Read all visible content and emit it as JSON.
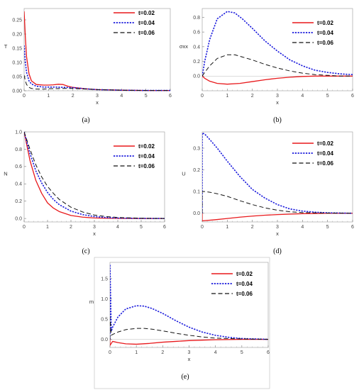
{
  "chart_data": [
    {
      "panel": "a",
      "caption": "(a)",
      "type": "line",
      "xlabel": "x",
      "ylabel": "T",
      "xlim": [
        0,
        6
      ],
      "ylim": [
        0,
        0.29
      ],
      "xticks": [
        "0",
        "1",
        "2",
        "3",
        "4",
        "5",
        "6"
      ],
      "yticks": [
        "0.00",
        "0.05",
        "0.10",
        "0.15",
        "0.20",
        "0.25"
      ],
      "legend": [
        "t=0.02",
        "t=0.04",
        "t=0.06"
      ],
      "legend_position": "top-right",
      "series": [
        {
          "name": "t=0.02",
          "color": "#e8191c",
          "style": "solid",
          "x": [
            0,
            0.05,
            0.1,
            0.2,
            0.3,
            0.5,
            0.8,
            1.0,
            1.2,
            1.4,
            1.6,
            1.8,
            2.0,
            2.5,
            3.0,
            4.0,
            5.0,
            6.0
          ],
          "y": [
            0.28,
            0.19,
            0.12,
            0.06,
            0.035,
            0.022,
            0.02,
            0.02,
            0.021,
            0.023,
            0.022,
            0.016,
            0.012,
            0.007,
            0.004,
            0.002,
            0.001,
            0.001
          ]
        },
        {
          "name": "t=0.04",
          "color": "#1a1adc",
          "style": "dotted",
          "x": [
            0,
            0.05,
            0.1,
            0.2,
            0.3,
            0.5,
            0.8,
            1.0,
            1.3,
            1.6,
            2.0,
            2.5,
            3.0,
            4.0,
            5.0,
            6.0
          ],
          "y": [
            0.16,
            0.1,
            0.065,
            0.035,
            0.024,
            0.016,
            0.013,
            0.013,
            0.013,
            0.012,
            0.011,
            0.007,
            0.004,
            0.002,
            0.001,
            0.001
          ]
        },
        {
          "name": "t=0.06",
          "color": "#111111",
          "style": "dashed",
          "x": [
            0,
            0.05,
            0.1,
            0.2,
            0.3,
            0.5,
            0.8,
            1.0,
            1.5,
            2.0,
            2.5,
            3.0,
            4.0,
            5.0,
            6.0
          ],
          "y": [
            0.055,
            0.035,
            0.022,
            0.012,
            0.008,
            0.006,
            0.006,
            0.007,
            0.008,
            0.008,
            0.006,
            0.004,
            0.002,
            0.001,
            0.001
          ]
        }
      ]
    },
    {
      "panel": "b",
      "caption": "(b)",
      "type": "line",
      "xlabel": "x",
      "ylabel": "σxx",
      "xlim": [
        0,
        6
      ],
      "ylim": [
        -0.2,
        0.92
      ],
      "xticks": [
        "0",
        "1",
        "2",
        "3",
        "4",
        "5",
        "6"
      ],
      "yticks": [
        "0.0",
        "0.2",
        "0.4",
        "0.6",
        "0.8"
      ],
      "legend": [
        "t=0.02",
        "t=0.04",
        "t=0.06"
      ],
      "legend_position": "top-right",
      "series": [
        {
          "name": "t=0.02",
          "color": "#e8191c",
          "style": "solid",
          "x": [
            0,
            0.1,
            0.3,
            0.6,
            1.0,
            1.5,
            2.0,
            2.5,
            3.0,
            3.5,
            4.0,
            4.5,
            5.0,
            5.5,
            6.0
          ],
          "y": [
            0,
            -0.03,
            -0.07,
            -0.1,
            -0.11,
            -0.1,
            -0.075,
            -0.05,
            -0.03,
            -0.015,
            -0.005,
            0,
            0,
            0,
            0
          ]
        },
        {
          "name": "t=0.04",
          "color": "#1a1adc",
          "style": "dotted",
          "x": [
            0,
            0.1,
            0.3,
            0.6,
            1.0,
            1.3,
            1.6,
            2.0,
            2.5,
            3.0,
            3.5,
            4.0,
            4.5,
            5.0,
            5.5,
            6.0
          ],
          "y": [
            0,
            0.2,
            0.5,
            0.78,
            0.88,
            0.86,
            0.78,
            0.65,
            0.48,
            0.34,
            0.22,
            0.14,
            0.08,
            0.05,
            0.03,
            0.02
          ]
        },
        {
          "name": "t=0.06",
          "color": "#111111",
          "style": "dashed",
          "x": [
            0,
            0.1,
            0.3,
            0.6,
            1.0,
            1.3,
            1.6,
            2.0,
            2.5,
            3.0,
            3.5,
            4.0,
            4.5,
            5.0,
            5.5,
            6.0
          ],
          "y": [
            0,
            0.05,
            0.14,
            0.24,
            0.29,
            0.29,
            0.26,
            0.22,
            0.16,
            0.11,
            0.07,
            0.04,
            0.02,
            0.01,
            0,
            0
          ]
        }
      ]
    },
    {
      "panel": "c",
      "caption": "(c)",
      "type": "line",
      "xlabel": "x",
      "ylabel": "N",
      "xlim": [
        0,
        6
      ],
      "ylim": [
        -0.04,
        1.0
      ],
      "xticks": [
        "0",
        "1",
        "2",
        "3",
        "4",
        "5",
        "6"
      ],
      "yticks": [
        "0.0",
        "0.2",
        "0.4",
        "0.6",
        "0.8",
        "1.0"
      ],
      "legend": [
        "t=0.02",
        "t=0.04",
        "t=0.06"
      ],
      "legend_position": "top-right",
      "series": [
        {
          "name": "t=0.02",
          "color": "#e8191c",
          "style": "solid",
          "x": [
            0,
            0.25,
            0.5,
            0.75,
            1.0,
            1.25,
            1.5,
            2.0,
            2.5,
            3.0,
            3.5,
            4.0,
            5.0,
            6.0
          ],
          "y": [
            1.0,
            0.67,
            0.44,
            0.29,
            0.18,
            0.12,
            0.08,
            0.035,
            0.015,
            0.006,
            0.003,
            0.001,
            0,
            0
          ]
        },
        {
          "name": "t=0.04",
          "color": "#1a1adc",
          "style": "dotted",
          "x": [
            0,
            0.25,
            0.5,
            0.75,
            1.0,
            1.25,
            1.5,
            2.0,
            2.5,
            3.0,
            3.5,
            4.0,
            5.0,
            6.0
          ],
          "y": [
            1.0,
            0.75,
            0.55,
            0.41,
            0.3,
            0.22,
            0.16,
            0.085,
            0.045,
            0.022,
            0.011,
            0.005,
            0.001,
            0
          ]
        },
        {
          "name": "t=0.06",
          "color": "#111111",
          "style": "dashed",
          "x": [
            0,
            0.25,
            0.5,
            0.75,
            1.0,
            1.25,
            1.5,
            2.0,
            2.5,
            3.0,
            3.5,
            4.0,
            5.0,
            6.0
          ],
          "y": [
            1.0,
            0.8,
            0.62,
            0.48,
            0.37,
            0.29,
            0.22,
            0.13,
            0.075,
            0.04,
            0.022,
            0.012,
            0.003,
            0
          ]
        }
      ]
    },
    {
      "panel": "d",
      "caption": "(d)",
      "type": "line",
      "xlabel": "x",
      "ylabel": "U",
      "xlim": [
        0,
        6
      ],
      "ylim": [
        -0.04,
        0.375
      ],
      "xticks": [
        "0",
        "1",
        "2",
        "3",
        "4",
        "5",
        "6"
      ],
      "yticks": [
        "0.0",
        "0.1",
        "0.2",
        "0.3"
      ],
      "legend": [
        "t=0.02",
        "t=0.04",
        "t=0.06"
      ],
      "legend_position": "top-right",
      "series": [
        {
          "name": "t=0.02",
          "color": "#e8191c",
          "style": "solid",
          "x": [
            0,
            0.0,
            0.1,
            0.5,
            1.0,
            1.5,
            2.0,
            2.5,
            3.0,
            3.5,
            4.0,
            4.5,
            5.0,
            6.0
          ],
          "y": [
            0,
            -0.035,
            -0.034,
            -0.03,
            -0.024,
            -0.018,
            -0.013,
            -0.009,
            -0.006,
            -0.004,
            -0.002,
            -0.001,
            0,
            0
          ]
        },
        {
          "name": "t=0.04",
          "color": "#1a1adc",
          "style": "dotted",
          "x": [
            0,
            0.0,
            0.1,
            0.3,
            0.6,
            1.0,
            1.5,
            2.0,
            2.5,
            3.0,
            3.5,
            4.0,
            4.5,
            5.0,
            5.5,
            6.0
          ],
          "y": [
            0,
            0.37,
            0.365,
            0.34,
            0.3,
            0.24,
            0.17,
            0.11,
            0.07,
            0.04,
            0.02,
            0.01,
            0.005,
            0.002,
            0.001,
            0
          ]
        },
        {
          "name": "t=0.06",
          "color": "#111111",
          "style": "dashed",
          "x": [
            0,
            0.0,
            0.1,
            0.3,
            0.6,
            1.0,
            1.5,
            2.0,
            2.5,
            3.0,
            3.5,
            4.0,
            5.0,
            6.0
          ],
          "y": [
            0,
            0.1,
            0.1,
            0.097,
            0.09,
            0.078,
            0.058,
            0.04,
            0.025,
            0.014,
            0.007,
            0.003,
            0.001,
            0
          ]
        }
      ]
    },
    {
      "panel": "e",
      "caption": "(e)",
      "type": "line",
      "xlabel": "x",
      "ylabel": "m",
      "xlim": [
        0,
        6
      ],
      "ylim": [
        -0.2,
        1.9
      ],
      "xticks": [
        "0",
        "1",
        "2",
        "3",
        "4",
        "5",
        "6"
      ],
      "yticks": [
        "0.0",
        "0.5",
        "1.0",
        "1.5"
      ],
      "legend": [
        "t=0.02",
        "t=0.04",
        "t=0.06"
      ],
      "legend_position": "top-right",
      "series": [
        {
          "name": "t=0.02",
          "color": "#e8191c",
          "style": "solid",
          "x": [
            0,
            0.0,
            0.1,
            0.3,
            0.6,
            1.0,
            1.5,
            2.0,
            2.5,
            3.0,
            3.5,
            4.0,
            4.5,
            5.0,
            6.0
          ],
          "y": [
            0,
            -0.15,
            -0.05,
            -0.08,
            -0.11,
            -0.12,
            -0.1,
            -0.07,
            -0.05,
            -0.03,
            -0.02,
            -0.01,
            -0.005,
            0,
            0
          ]
        },
        {
          "name": "t=0.04",
          "color": "#1a1adc",
          "style": "dotted",
          "x": [
            0,
            0.0,
            0.05,
            0.1,
            0.3,
            0.6,
            1.0,
            1.3,
            1.6,
            2.0,
            2.5,
            3.0,
            3.5,
            4.0,
            4.5,
            5.0,
            6.0
          ],
          "y": [
            0,
            1.85,
            0.2,
            0.3,
            0.55,
            0.75,
            0.83,
            0.82,
            0.76,
            0.64,
            0.46,
            0.3,
            0.18,
            0.1,
            0.05,
            0.02,
            0
          ]
        },
        {
          "name": "t=0.06",
          "color": "#111111",
          "style": "dashed",
          "x": [
            0,
            0.0,
            0.05,
            0.1,
            0.3,
            0.6,
            1.0,
            1.3,
            1.6,
            2.0,
            2.5,
            3.0,
            3.5,
            4.0,
            5.0,
            6.0
          ],
          "y": [
            0,
            0.55,
            0.1,
            0.12,
            0.18,
            0.24,
            0.27,
            0.27,
            0.25,
            0.21,
            0.15,
            0.1,
            0.06,
            0.03,
            0.01,
            0
          ]
        }
      ]
    }
  ]
}
